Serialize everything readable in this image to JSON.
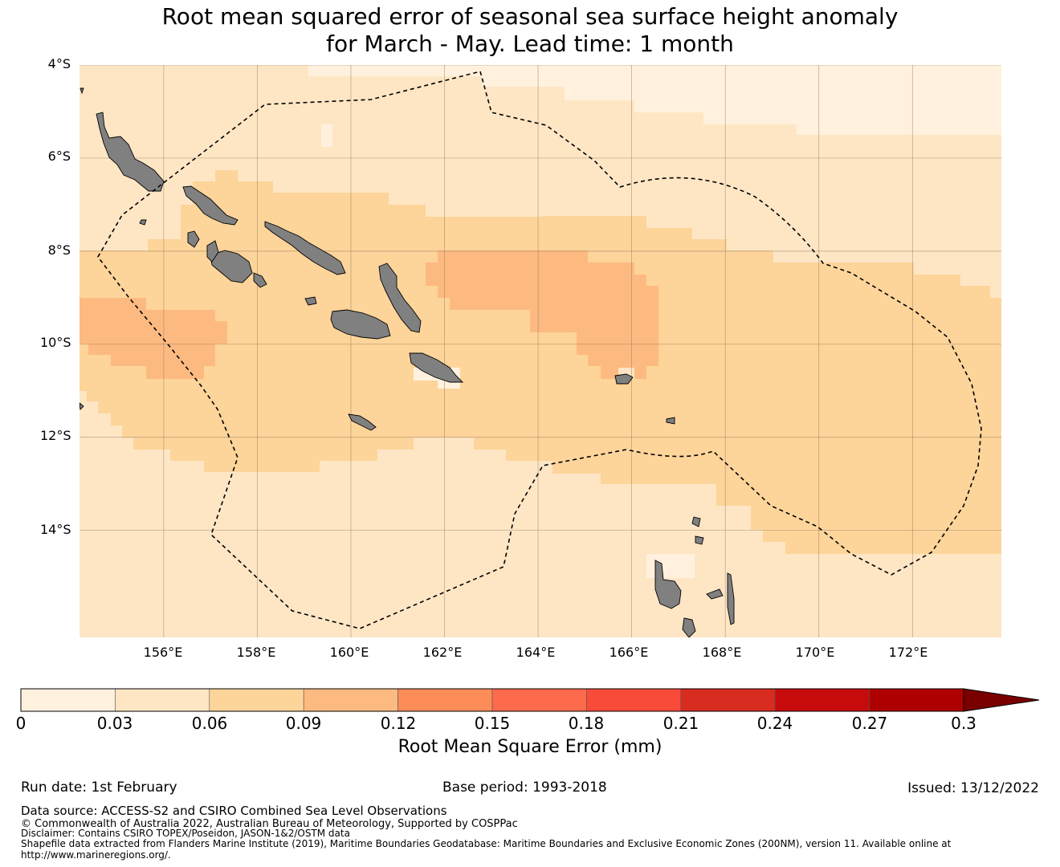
{
  "title": {
    "line1": "Root mean squared error of seasonal sea surface height anomaly",
    "line2": "for March - May. Lead time: 1 month"
  },
  "map": {
    "lat_labels": [
      "4°S",
      "6°S",
      "8°S",
      "10°S",
      "12°S",
      "14°S"
    ],
    "lon_labels": [
      "156°E",
      "158°E",
      "160°E",
      "162°E",
      "164°E",
      "166°E",
      "168°E",
      "170°E",
      "172°E"
    ],
    "lat_range": [
      -16.3,
      -4
    ],
    "lon_range": [
      154.2,
      173.9
    ]
  },
  "colorbar": {
    "ticks": [
      "0",
      "0.03",
      "0.06",
      "0.09",
      "0.12",
      "0.15",
      "0.18",
      "0.21",
      "0.24",
      "0.27",
      "0.3"
    ],
    "label": "Root Mean Square Error (mm)",
    "colors": [
      "#fff1dd",
      "#fee6c5",
      "#fdd49a",
      "#fdba80",
      "#fc8d59",
      "#fd6a4c",
      "#f84b3a",
      "#d72c1f",
      "#c70a0c",
      "#ae0000"
    ],
    "extend_color": "#7a0000"
  },
  "footer": {
    "run_date": "Run date: 1st February",
    "base_period": "Base period: 1993-2018",
    "issued": "Issued: 13/12/2022",
    "data_source": "Data source: ACCESS-S2 and CSIRO Combined Sea Level Observations",
    "copyright": "© Commonwealth of Australia 2022, Australian Bureau of Meteorology, Supported by COSPPac",
    "disclaimer": "Disclaimer: Contains CSIRO TOPEX/Poseidon, JASON-1&2/OSTM data",
    "shapefile": "Shapefile data extracted from Flanders Marine Institute (2019), Maritime Boundaries Geodatabase: Maritime Boundaries and Exclusive Economic Zones (200NM), version 11. Available online at",
    "url": "http://www.marineregions.org/."
  }
}
